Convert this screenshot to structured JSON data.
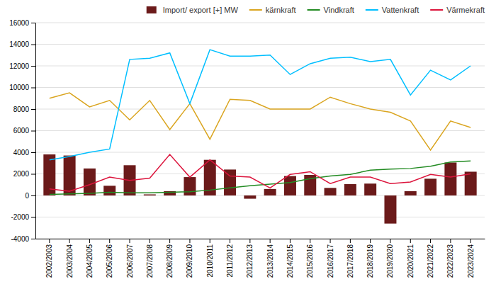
{
  "chart_data": {
    "type": "bar",
    "categories": [
      "2002/2003",
      "2003/2004",
      "2004/2005",
      "2005/2006",
      "2006/2007",
      "2007/2008",
      "2008/2009",
      "2009/2010",
      "2010/2011",
      "2011/2012",
      "2012/2013",
      "2013/2014",
      "2014/2015",
      "2015/2016",
      "2016/2017",
      "2017/2018",
      "2018/2019",
      "2019/2020",
      "2020/2021",
      "2021/2022",
      "2022/2023",
      "2023/2024"
    ],
    "series": [
      {
        "name": "Import/ export [+] MW",
        "type": "bar",
        "color": "#6B1A1A",
        "values": [
          3800,
          3700,
          2500,
          900,
          2800,
          100,
          400,
          1700,
          3300,
          2400,
          -300,
          600,
          1800,
          1900,
          700,
          1050,
          1100,
          -2600,
          400,
          1550,
          3050,
          2200
        ]
      },
      {
        "name": "kärnkraft",
        "type": "line",
        "color": "#DAA520",
        "values": [
          9000,
          9500,
          8200,
          8800,
          7000,
          8800,
          6100,
          8500,
          5200,
          8900,
          8800,
          8000,
          8000,
          8000,
          9100,
          8500,
          8000,
          7700,
          6900,
          4200,
          6900,
          6300
        ]
      },
      {
        "name": "Vindkraft",
        "type": "line",
        "color": "#228B22",
        "values": [
          100,
          150,
          200,
          300,
          250,
          250,
          300,
          350,
          500,
          700,
          900,
          1050,
          1200,
          1550,
          1800,
          1950,
          2350,
          2450,
          2500,
          2700,
          3100,
          3200
        ]
      },
      {
        "name": "Vattenkraft",
        "type": "line",
        "color": "#00BFFF",
        "values": [
          3300,
          3600,
          4000,
          4300,
          12600,
          12700,
          13200,
          8500,
          13500,
          12900,
          12900,
          13000,
          11200,
          12200,
          12700,
          12800,
          12400,
          12600,
          9300,
          11600,
          10700,
          12000
        ]
      },
      {
        "name": "Värmekraft",
        "type": "line",
        "color": "#DC143C",
        "values": [
          600,
          400,
          1000,
          1700,
          1400,
          1600,
          3800,
          1700,
          3300,
          1800,
          1700,
          700,
          1950,
          2200,
          1100,
          1700,
          1700,
          1100,
          1250,
          1950,
          1700,
          2000
        ]
      }
    ],
    "ylim": [
      -4000,
      16000
    ],
    "yticks": [
      -4000,
      -2000,
      0,
      2000,
      4000,
      6000,
      8000,
      10000,
      12000,
      14000,
      16000
    ],
    "grid": true,
    "legend": "upper right"
  }
}
